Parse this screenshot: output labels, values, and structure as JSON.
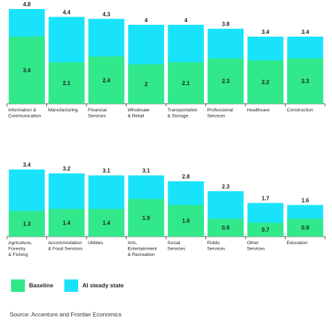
{
  "chart_data": {
    "type": "bar",
    "overlap": true,
    "categories": [
      "Information &\nCommunication",
      "Manufacturing",
      "Financial\nServices",
      "Wholesale\n& Retail",
      "Transportation\n& Storage",
      "Professional\nServices",
      "Healthcare",
      "Construction",
      "Agriculture,\nForestry\n& Fishing",
      "Accommodation\n& Food Services",
      "Utilities",
      "Arts,\nEntertainment\n& Recreation",
      "Social\nServices",
      "Public\nServices",
      "Other\nServices",
      "Education"
    ],
    "series": [
      {
        "name": "AI steady state",
        "color": "#19e3fb",
        "values": [
          4.8,
          4.4,
          4.3,
          4.0,
          4.0,
          3.8,
          3.4,
          3.4,
          3.4,
          3.2,
          3.1,
          3.1,
          2.8,
          2.3,
          1.7,
          1.6
        ]
      },
      {
        "name": "Baseline",
        "color": "#31e88b",
        "values": [
          3.4,
          2.1,
          2.4,
          2.0,
          2.1,
          2.3,
          2.2,
          2.3,
          1.3,
          1.4,
          1.4,
          1.9,
          1.6,
          0.9,
          0.7,
          0.9
        ]
      }
    ],
    "ylim": [
      0,
      4.8
    ],
    "source": "Source: Accenture and Frontier Economics"
  }
}
